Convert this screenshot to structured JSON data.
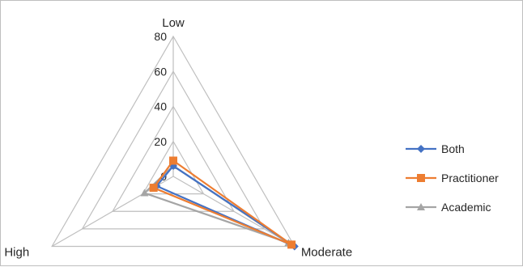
{
  "chart_data": {
    "type": "radar",
    "categories": [
      "Low",
      "Moderate",
      "High"
    ],
    "r_ticks": [
      0,
      20,
      40,
      60,
      80
    ],
    "rlim": [
      0,
      80
    ],
    "grid": true,
    "legend_position": "right",
    "series": [
      {
        "name": "Both",
        "values": [
          6,
          80,
          11
        ],
        "color": "#4472c4",
        "marker": "diamond"
      },
      {
        "name": "Practitioner",
        "values": [
          9,
          78,
          13
        ],
        "color": "#ed7d31",
        "marker": "square"
      },
      {
        "name": "Academic",
        "values": [
          6,
          76,
          19
        ],
        "color": "#a5a5a5",
        "marker": "triangle"
      }
    ]
  }
}
